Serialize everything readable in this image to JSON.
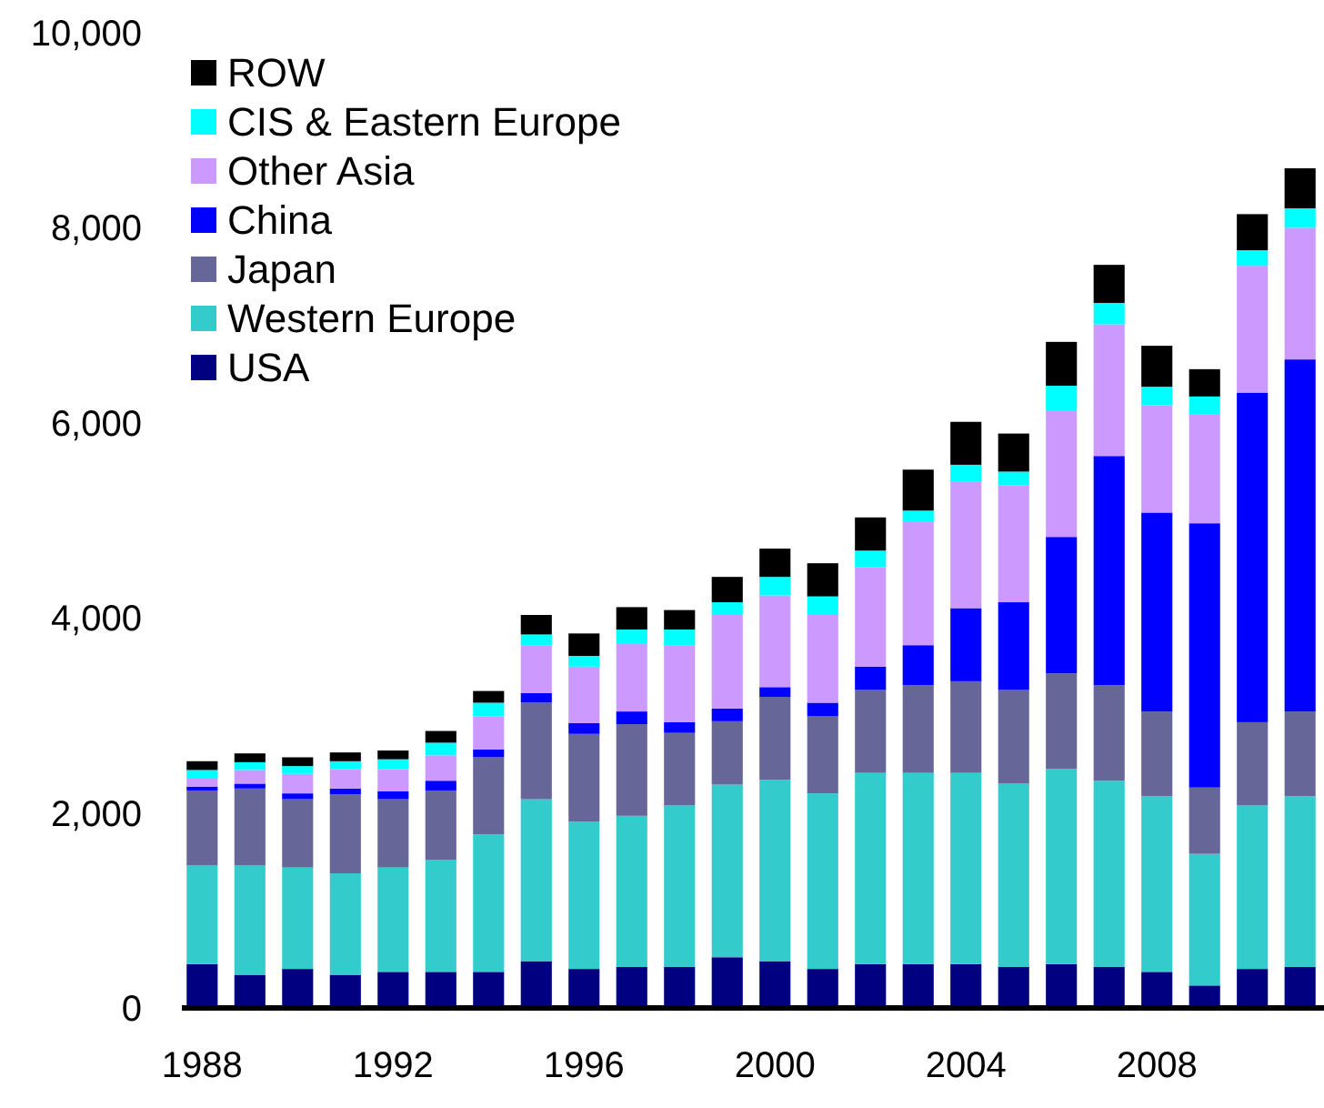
{
  "chart_data": {
    "type": "bar",
    "stacked": true,
    "legend": "top left",
    "grid": false,
    "categories": [
      "1988",
      null,
      null,
      null,
      "1992",
      null,
      null,
      null,
      "1996",
      null,
      null,
      null,
      "2000",
      null,
      null,
      null,
      "2004",
      null,
      null,
      null,
      "2008",
      null,
      null,
      null
    ],
    "ylim": [
      0,
      10000
    ],
    "yticks": [
      {
        "value": 0,
        "label": "0"
      },
      {
        "value": 2000,
        "label": "2,000"
      },
      {
        "value": 4000,
        "label": "4,000"
      },
      {
        "value": 6000,
        "label": "6,000"
      },
      {
        "value": 8000,
        "label": "8,000"
      },
      {
        "value": 10000,
        "label": "10,000"
      }
    ],
    "series": [
      {
        "name": "USA",
        "color": "#000080",
        "values": [
          450,
          340,
          400,
          340,
          370,
          370,
          370,
          480,
          400,
          420,
          420,
          520,
          480,
          400,
          450,
          450,
          450,
          420,
          450,
          420,
          370,
          230,
          400,
          420
        ]
      },
      {
        "name": "Western Europe",
        "color": "#33cccc",
        "values": [
          1010,
          1120,
          1040,
          1040,
          1070,
          1150,
          1410,
          1660,
          1510,
          1550,
          1660,
          1770,
          1860,
          1800,
          1960,
          1960,
          1960,
          1880,
          2000,
          1910,
          1800,
          1350,
          1680,
          1750
        ]
      },
      {
        "name": "Japan",
        "color": "#666699",
        "values": [
          770,
          790,
          700,
          810,
          700,
          710,
          790,
          990,
          900,
          940,
          740,
          650,
          850,
          790,
          850,
          900,
          940,
          960,
          980,
          980,
          870,
          680,
          850,
          870
        ]
      },
      {
        "name": "China",
        "color": "#0000ff",
        "values": [
          40,
          50,
          60,
          60,
          80,
          100,
          80,
          100,
          110,
          130,
          110,
          130,
          100,
          140,
          240,
          410,
          750,
          900,
          1400,
          2350,
          2040,
          2710,
          3380,
          3610
        ]
      },
      {
        "name": "Other Asia",
        "color": "#cc99ff",
        "values": [
          90,
          140,
          200,
          200,
          230,
          260,
          340,
          490,
          580,
          700,
          790,
          960,
          940,
          900,
          1020,
          1270,
          1300,
          1200,
          1290,
          1350,
          1100,
          1120,
          1300,
          1350
        ]
      },
      {
        "name": "CIS & Eastern Europe",
        "color": "#00ffff",
        "values": [
          80,
          80,
          80,
          80,
          100,
          130,
          140,
          110,
          110,
          140,
          160,
          130,
          190,
          190,
          170,
          110,
          170,
          140,
          260,
          220,
          190,
          180,
          160,
          200
        ]
      },
      {
        "name": "ROW",
        "color": "#000000",
        "values": [
          90,
          90,
          90,
          90,
          90,
          120,
          120,
          200,
          230,
          230,
          200,
          260,
          290,
          340,
          340,
          420,
          440,
          390,
          450,
          390,
          420,
          280,
          370,
          410
        ]
      }
    ]
  }
}
